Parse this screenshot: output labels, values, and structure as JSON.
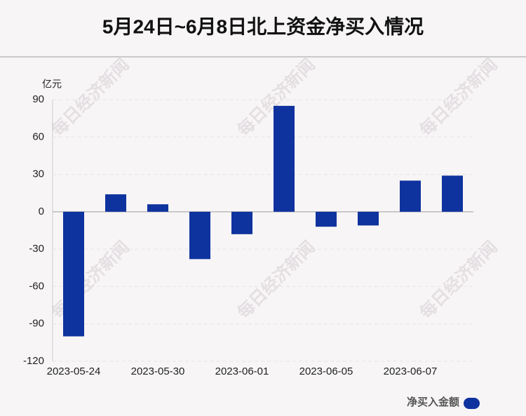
{
  "chart_data": {
    "type": "bar",
    "title": "5月24日~6月8日北上资金净买入情况",
    "y_unit": "亿元",
    "watermark": "每日经济新闻",
    "categories": [
      "2023-05-24",
      null,
      "2023-05-30",
      null,
      "2023-06-01",
      null,
      "2023-06-05",
      null,
      "2023-06-07",
      null
    ],
    "series": [
      {
        "name": "净买入金额",
        "color": "#0f339e",
        "values": [
          -100,
          14,
          6,
          -38,
          -18,
          85,
          -12,
          -11,
          25,
          29
        ]
      }
    ],
    "ylim": [
      -120,
      90
    ],
    "yticks": [
      -120,
      -90,
      -60,
      -30,
      0,
      30,
      60,
      90
    ],
    "grid": true,
    "legend": "bottom-right"
  }
}
